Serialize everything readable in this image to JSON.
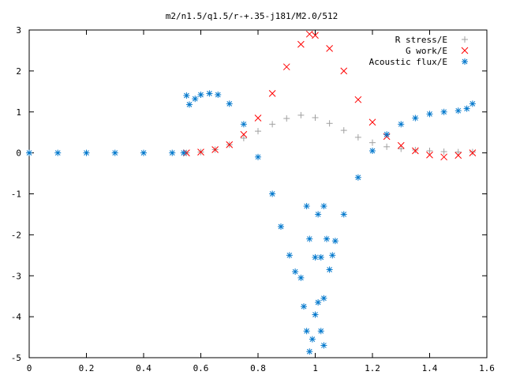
{
  "chart_data": {
    "type": "scatter",
    "title": "m2/n1.5/q1.5/r-+.35-j181/M2.0/512",
    "xlabel": "",
    "ylabel": "",
    "xlim": [
      0,
      1.6
    ],
    "ylim": [
      -5,
      3
    ],
    "xticks": [
      "0",
      "0.2",
      "0.4",
      "0.6",
      "0.8",
      "1",
      "1.2",
      "1.4",
      "1.6"
    ],
    "yticks": [
      "3",
      "2",
      "1",
      "0",
      "-1",
      "-2",
      "-3",
      "-4",
      "-5"
    ],
    "grid": false,
    "legend_position": "top-right",
    "series": [
      {
        "name": "R stress/E",
        "marker": "plus",
        "color": "#a0a0a0",
        "points": [
          [
            0.55,
            0.0
          ],
          [
            0.6,
            0.02
          ],
          [
            0.65,
            0.08
          ],
          [
            0.7,
            0.2
          ],
          [
            0.75,
            0.36
          ],
          [
            0.8,
            0.53
          ],
          [
            0.85,
            0.7
          ],
          [
            0.9,
            0.84
          ],
          [
            0.95,
            0.92
          ],
          [
            1.0,
            0.86
          ],
          [
            1.05,
            0.72
          ],
          [
            1.1,
            0.55
          ],
          [
            1.15,
            0.38
          ],
          [
            1.2,
            0.25
          ],
          [
            1.25,
            0.15
          ],
          [
            1.3,
            0.1
          ],
          [
            1.35,
            0.07
          ],
          [
            1.4,
            0.05
          ],
          [
            1.45,
            0.03
          ],
          [
            1.5,
            0.02
          ],
          [
            1.55,
            0.02
          ]
        ]
      },
      {
        "name": "G work/E",
        "marker": "cross",
        "color": "#ff0000",
        "points": [
          [
            0.55,
            0.0
          ],
          [
            0.6,
            0.02
          ],
          [
            0.65,
            0.08
          ],
          [
            0.7,
            0.2
          ],
          [
            0.75,
            0.45
          ],
          [
            0.8,
            0.85
          ],
          [
            0.85,
            1.45
          ],
          [
            0.9,
            2.1
          ],
          [
            0.95,
            2.65
          ],
          [
            0.98,
            2.9
          ],
          [
            1.0,
            2.87
          ],
          [
            1.05,
            2.55
          ],
          [
            1.1,
            2.0
          ],
          [
            1.15,
            1.3
          ],
          [
            1.2,
            0.75
          ],
          [
            1.25,
            0.4
          ],
          [
            1.3,
            0.18
          ],
          [
            1.35,
            0.05
          ],
          [
            1.4,
            -0.05
          ],
          [
            1.45,
            -0.1
          ],
          [
            1.5,
            -0.06
          ],
          [
            1.55,
            0.0
          ]
        ]
      },
      {
        "name": "Acoustic flux/E",
        "marker": "star",
        "color": "#0077cc",
        "points": [
          [
            0.0,
            0.0
          ],
          [
            0.1,
            0.0
          ],
          [
            0.2,
            0.0
          ],
          [
            0.3,
            0.0
          ],
          [
            0.4,
            0.0
          ],
          [
            0.5,
            0.0
          ],
          [
            0.54,
            0.0
          ],
          [
            0.55,
            1.4
          ],
          [
            0.56,
            1.18
          ],
          [
            0.58,
            1.32
          ],
          [
            0.6,
            1.42
          ],
          [
            0.63,
            1.45
          ],
          [
            0.66,
            1.42
          ],
          [
            0.7,
            1.2
          ],
          [
            0.75,
            0.7
          ],
          [
            0.8,
            -0.1
          ],
          [
            0.85,
            -1.0
          ],
          [
            0.88,
            -1.8
          ],
          [
            0.91,
            -2.5
          ],
          [
            0.93,
            -2.9
          ],
          [
            0.95,
            -3.05
          ],
          [
            0.96,
            -3.75
          ],
          [
            0.97,
            -4.35
          ],
          [
            0.98,
            -4.85
          ],
          [
            0.99,
            -4.55
          ],
          [
            1.0,
            -3.95
          ],
          [
            1.01,
            -3.65
          ],
          [
            1.02,
            -4.35
          ],
          [
            1.03,
            -4.7
          ],
          [
            1.03,
            -3.55
          ],
          [
            1.0,
            -2.55
          ],
          [
            0.98,
            -2.1
          ],
          [
            0.97,
            -1.3
          ],
          [
            1.01,
            -1.5
          ],
          [
            1.02,
            -2.55
          ],
          [
            1.03,
            -1.3
          ],
          [
            1.04,
            -2.1
          ],
          [
            1.05,
            -2.85
          ],
          [
            1.06,
            -2.5
          ],
          [
            1.07,
            -2.15
          ],
          [
            1.1,
            -1.5
          ],
          [
            1.15,
            -0.6
          ],
          [
            1.2,
            0.05
          ],
          [
            1.25,
            0.45
          ],
          [
            1.3,
            0.7
          ],
          [
            1.35,
            0.85
          ],
          [
            1.4,
            0.95
          ],
          [
            1.45,
            1.0
          ],
          [
            1.5,
            1.03
          ],
          [
            1.53,
            1.08
          ],
          [
            1.55,
            1.2
          ]
        ]
      }
    ]
  }
}
